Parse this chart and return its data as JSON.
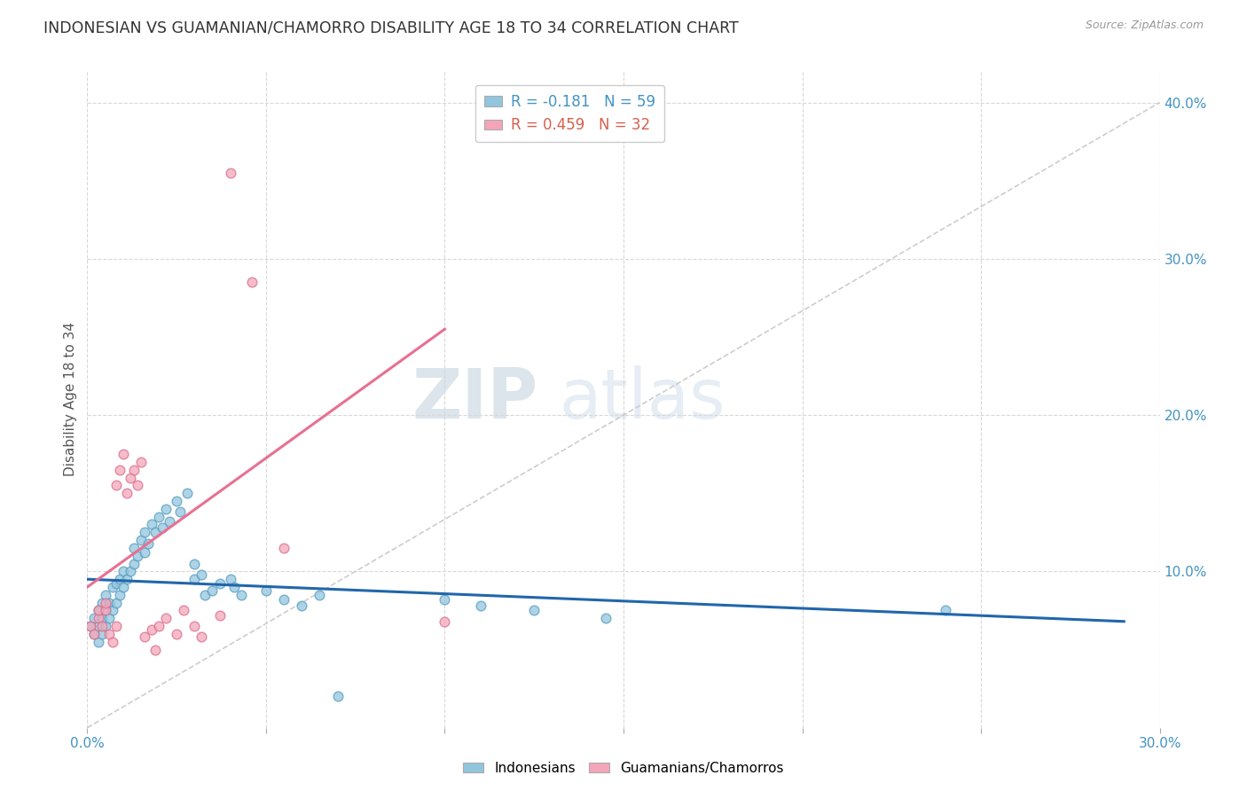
{
  "title": "INDONESIAN VS GUAMANIAN/CHAMORRO DISABILITY AGE 18 TO 34 CORRELATION CHART",
  "source": "Source: ZipAtlas.com",
  "ylabel": "Disability Age 18 to 34",
  "xlim": [
    0.0,
    0.3
  ],
  "ylim": [
    0.0,
    0.42
  ],
  "x_ticks": [
    0.0,
    0.05,
    0.1,
    0.15,
    0.2,
    0.25,
    0.3
  ],
  "y_ticks_right": [
    0.0,
    0.1,
    0.2,
    0.3,
    0.4
  ],
  "legend_r1": "R = -0.181",
  "legend_n1": "N = 59",
  "legend_r2": "R = 0.459",
  "legend_n2": "N = 32",
  "indonesian_color": "#92c5de",
  "indonesian_edge_color": "#5a9dc0",
  "guamanian_color": "#f4a6b8",
  "guamanian_edge_color": "#d97090",
  "indonesian_line_color": "#2166ac",
  "guamanian_line_color": "#e87090",
  "diagonal_line_color": "#c8c8c8",
  "watermark_zip": "ZIP",
  "watermark_atlas": "atlas",
  "indonesian_points_x": [
    0.001,
    0.002,
    0.002,
    0.003,
    0.003,
    0.003,
    0.004,
    0.004,
    0.004,
    0.005,
    0.005,
    0.005,
    0.006,
    0.006,
    0.007,
    0.007,
    0.008,
    0.008,
    0.009,
    0.009,
    0.01,
    0.01,
    0.011,
    0.012,
    0.013,
    0.013,
    0.014,
    0.015,
    0.016,
    0.016,
    0.017,
    0.018,
    0.019,
    0.02,
    0.021,
    0.022,
    0.023,
    0.025,
    0.026,
    0.028,
    0.03,
    0.03,
    0.032,
    0.033,
    0.035,
    0.037,
    0.04,
    0.041,
    0.043,
    0.05,
    0.055,
    0.06,
    0.065,
    0.07,
    0.1,
    0.11,
    0.125,
    0.145,
    0.24
  ],
  "indonesian_points_y": [
    0.065,
    0.06,
    0.07,
    0.055,
    0.065,
    0.075,
    0.06,
    0.07,
    0.08,
    0.065,
    0.075,
    0.085,
    0.07,
    0.08,
    0.075,
    0.09,
    0.08,
    0.092,
    0.085,
    0.095,
    0.09,
    0.1,
    0.095,
    0.1,
    0.105,
    0.115,
    0.11,
    0.12,
    0.112,
    0.125,
    0.118,
    0.13,
    0.125,
    0.135,
    0.128,
    0.14,
    0.132,
    0.145,
    0.138,
    0.15,
    0.095,
    0.105,
    0.098,
    0.085,
    0.088,
    0.092,
    0.095,
    0.09,
    0.085,
    0.088,
    0.082,
    0.078,
    0.085,
    0.02,
    0.082,
    0.078,
    0.075,
    0.07,
    0.075
  ],
  "guamanian_points_x": [
    0.001,
    0.002,
    0.003,
    0.003,
    0.004,
    0.005,
    0.005,
    0.006,
    0.007,
    0.008,
    0.008,
    0.009,
    0.01,
    0.011,
    0.012,
    0.013,
    0.014,
    0.015,
    0.016,
    0.018,
    0.019,
    0.02,
    0.022,
    0.025,
    0.027,
    0.03,
    0.032,
    0.037,
    0.04,
    0.046,
    0.055,
    0.1
  ],
  "guamanian_points_y": [
    0.065,
    0.06,
    0.07,
    0.075,
    0.065,
    0.075,
    0.08,
    0.06,
    0.055,
    0.065,
    0.155,
    0.165,
    0.175,
    0.15,
    0.16,
    0.165,
    0.155,
    0.17,
    0.058,
    0.063,
    0.05,
    0.065,
    0.07,
    0.06,
    0.075,
    0.065,
    0.058,
    0.072,
    0.355,
    0.285,
    0.115,
    0.068
  ],
  "blue_line_x": [
    0.0,
    0.29
  ],
  "blue_line_y": [
    0.095,
    0.068
  ],
  "pink_line_x": [
    0.0,
    0.1
  ],
  "pink_line_y": [
    0.09,
    0.255
  ]
}
